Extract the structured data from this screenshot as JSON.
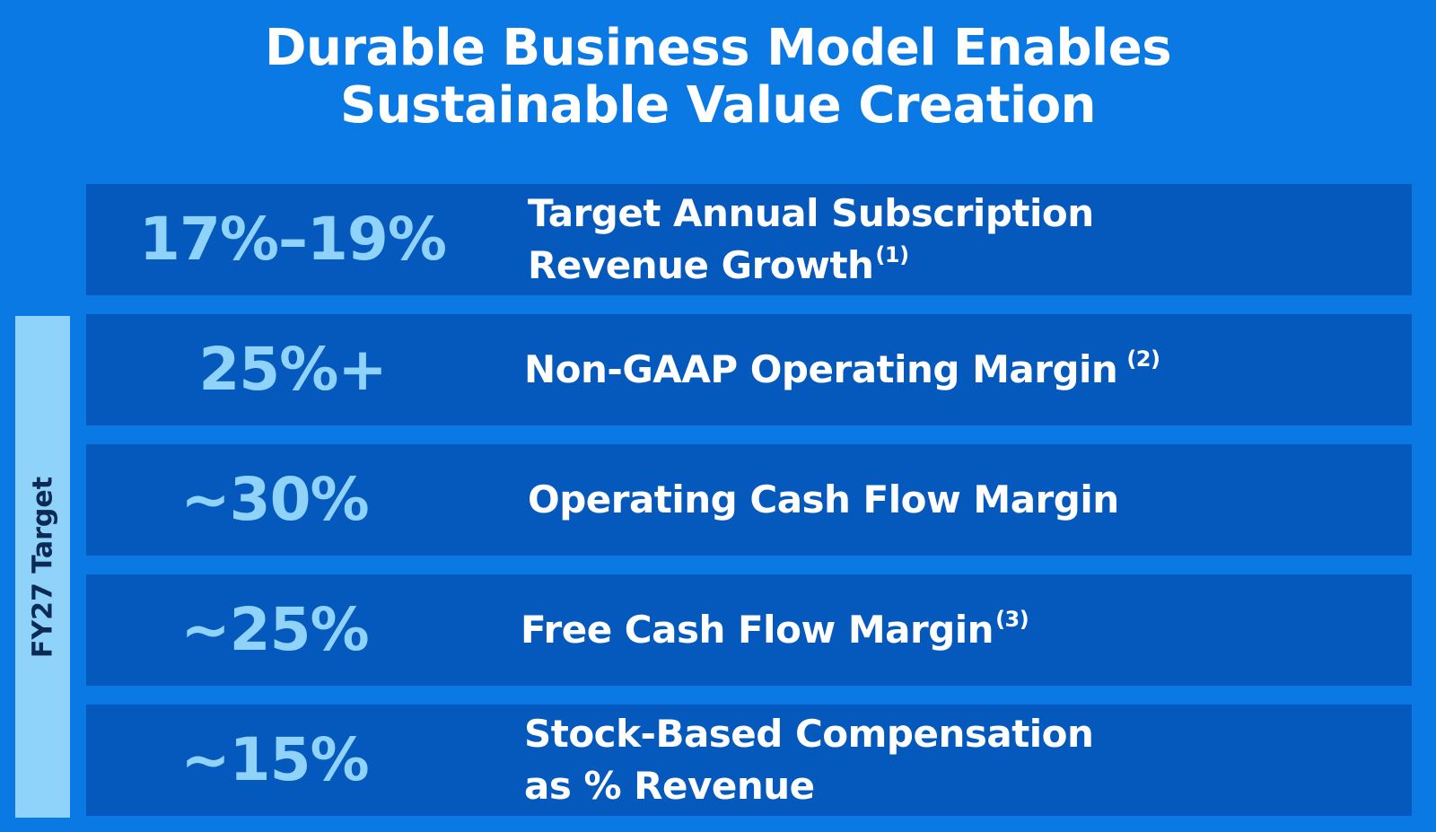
{
  "title": {
    "line1": "Durable Business Model Enables",
    "line2": "Sustainable Value Creation"
  },
  "side_label": "FY27 Target",
  "colors": {
    "background": "#0a79e3",
    "row": "#0559bd",
    "value": "#8fd3fb",
    "side_tab": "#8fd3fb",
    "side_tab_text": "#0b2a55",
    "text": "#ffffff"
  },
  "metrics": [
    {
      "value": "17%–19%",
      "label_line1": "Target Annual Subscription",
      "label_line2": "Revenue Growth",
      "footnote": "(1)"
    },
    {
      "value": "25%+",
      "label_line1": "Non-GAAP Operating Margin",
      "label_line2": "",
      "footnote": "(2)"
    },
    {
      "value": "~30%",
      "label_line1": "Operating Cash Flow Margin",
      "label_line2": "",
      "footnote": ""
    },
    {
      "value": "~25%",
      "label_line1": "Free Cash Flow Margin",
      "label_line2": "",
      "footnote": "(3)"
    },
    {
      "value": "~15%",
      "label_line1": "Stock-Based Compensation",
      "label_line2": "as % Revenue",
      "footnote": ""
    }
  ]
}
